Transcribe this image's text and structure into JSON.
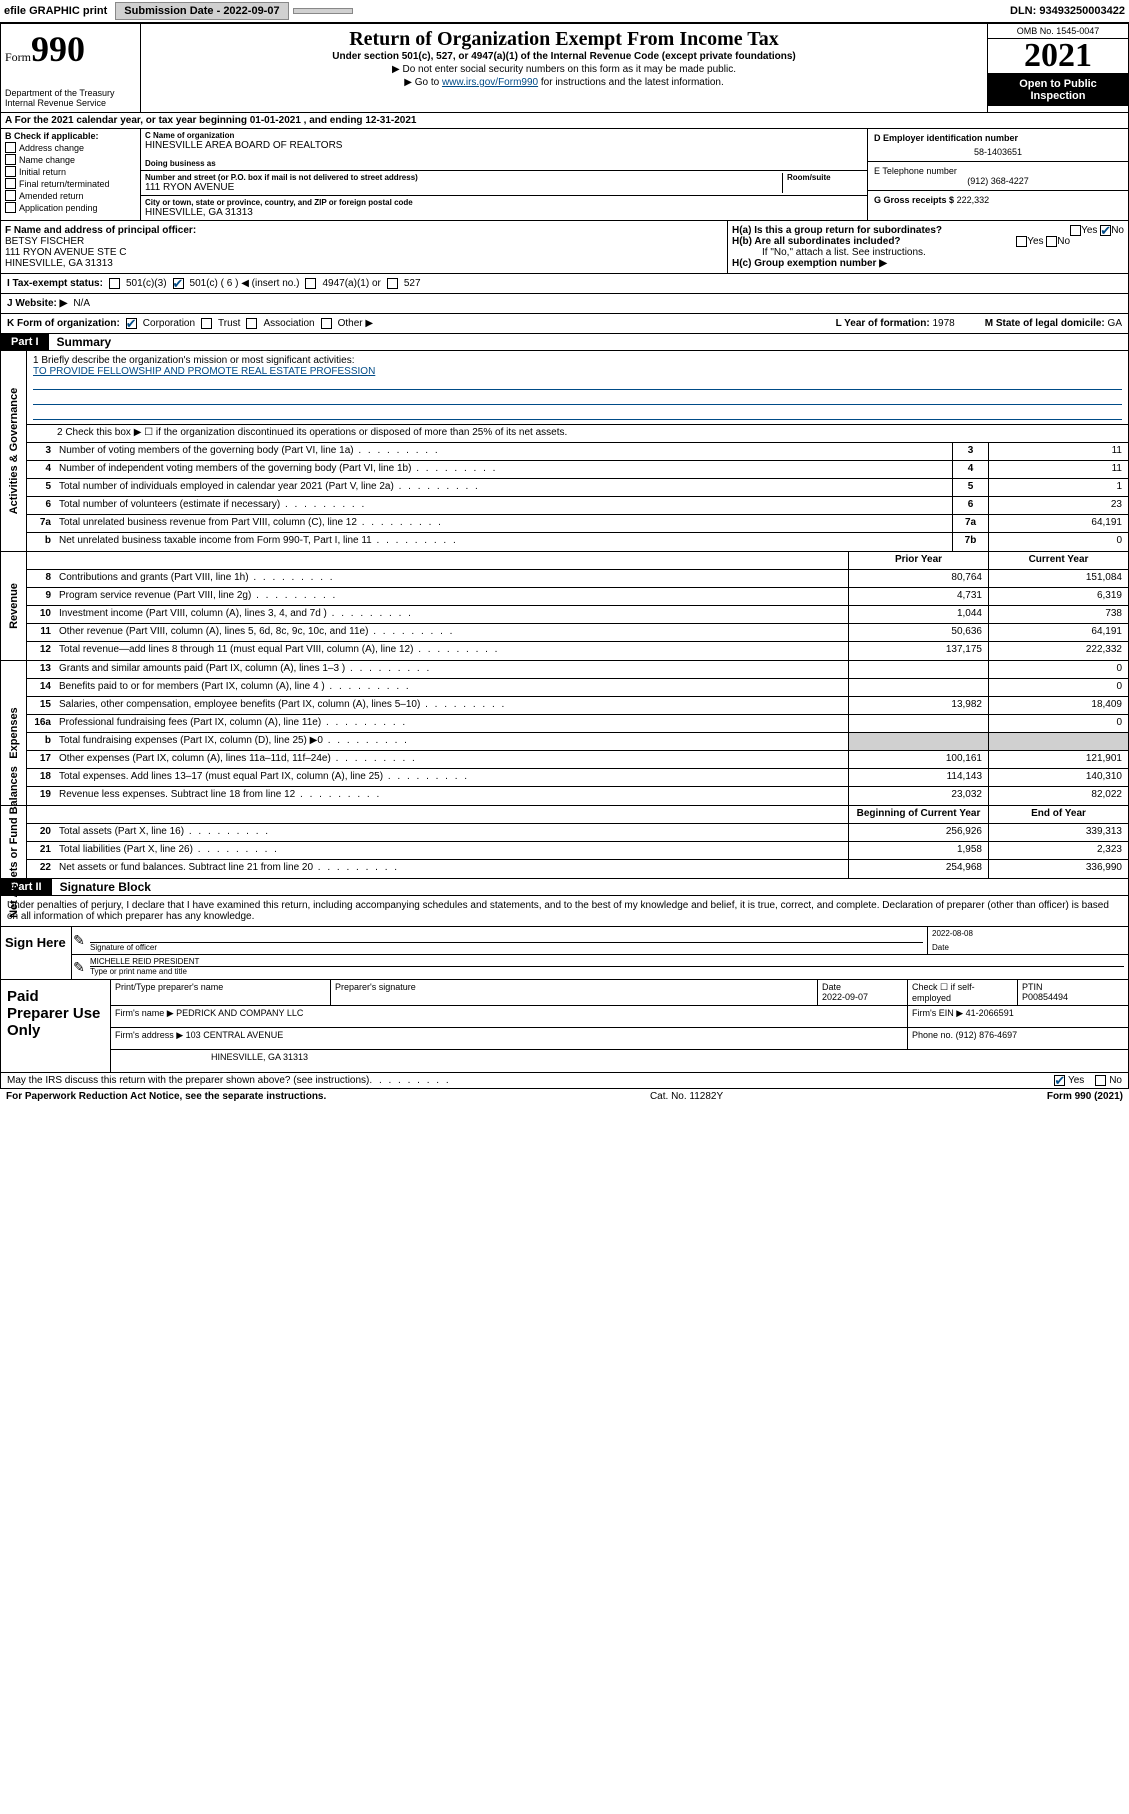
{
  "topbar": {
    "efile": "efile GRAPHIC print",
    "submission_btn": "Submission Date - 2022-09-07",
    "dln": "DLN: 93493250003422"
  },
  "header": {
    "form_word": "Form",
    "form_num": "990",
    "dept": "Department of the Treasury",
    "irs": "Internal Revenue Service",
    "title": "Return of Organization Exempt From Income Tax",
    "subtitle": "Under section 501(c), 527, or 4947(a)(1) of the Internal Revenue Code (except private foundations)",
    "note1": "▶ Do not enter social security numbers on this form as it may be made public.",
    "note2_pre": "▶ Go to ",
    "note2_link": "www.irs.gov/Form990",
    "note2_post": " for instructions and the latest information.",
    "omb": "OMB No. 1545-0047",
    "year": "2021",
    "open": "Open to Public Inspection"
  },
  "row_a": "A For the 2021 calendar year, or tax year beginning 01-01-2021   , and ending 12-31-2021",
  "col_b": {
    "title": "B Check if applicable:",
    "items": [
      "Address change",
      "Name change",
      "Initial return",
      "Final return/terminated",
      "Amended return",
      "Application pending"
    ]
  },
  "col_c": {
    "name_label": "C Name of organization",
    "name": "HINESVILLE AREA BOARD OF REALTORS",
    "dba_label": "Doing business as",
    "dba": "",
    "addr_label": "Number and street (or P.O. box if mail is not delivered to street address)",
    "room_label": "Room/suite",
    "addr": "111 RYON AVENUE",
    "city_label": "City or town, state or province, country, and ZIP or foreign postal code",
    "city": "HINESVILLE, GA  31313"
  },
  "col_de": {
    "ein_label": "D Employer identification number",
    "ein": "58-1403651",
    "phone_label": "E Telephone number",
    "phone": "(912) 368-4227",
    "gross_label": "G Gross receipts $",
    "gross": "222,332"
  },
  "row_f": {
    "label": "F Name and address of principal officer:",
    "name": "BETSY FISCHER",
    "addr1": "111 RYON AVENUE STE C",
    "addr2": "HINESVILLE, GA  31313"
  },
  "row_h": {
    "ha": "H(a)  Is this a group return for subordinates?",
    "hb": "H(b)  Are all subordinates included?",
    "hb_note": "If \"No,\" attach a list. See instructions.",
    "hc": "H(c)  Group exemption number ▶",
    "yes": "Yes",
    "no": "No"
  },
  "tax_status": {
    "label": "I   Tax-exempt status:",
    "opt1": "501(c)(3)",
    "opt2": "501(c) ( 6 ) ◀ (insert no.)",
    "opt3": "4947(a)(1) or",
    "opt4": "527"
  },
  "website": {
    "label": "J   Website: ▶",
    "val": "N/A"
  },
  "korg": {
    "label": "K Form of organization:",
    "opts": [
      "Corporation",
      "Trust",
      "Association",
      "Other ▶"
    ],
    "year_label": "L Year of formation:",
    "year": "1978",
    "state_label": "M State of legal domicile:",
    "state": "GA"
  },
  "part1": {
    "header": "Part I",
    "title": "Summary",
    "mission_label": "1   Briefly describe the organization's mission or most significant activities:",
    "mission": "TO PROVIDE FELLOWSHIP AND PROMOTE REAL ESTATE PROFESSION",
    "line2": "2   Check this box ▶ ☐  if the organization discontinued its operations or disposed of more than 25% of its net assets.",
    "sections": {
      "governance": "Activities & Governance",
      "revenue": "Revenue",
      "expenses": "Expenses",
      "netassets": "Net Assets or Fund Balances"
    },
    "gov_lines": [
      {
        "n": "3",
        "d": "Number of voting members of the governing body (Part VI, line 1a)",
        "box": "3",
        "v": "11"
      },
      {
        "n": "4",
        "d": "Number of independent voting members of the governing body (Part VI, line 1b)",
        "box": "4",
        "v": "11"
      },
      {
        "n": "5",
        "d": "Total number of individuals employed in calendar year 2021 (Part V, line 2a)",
        "box": "5",
        "v": "1"
      },
      {
        "n": "6",
        "d": "Total number of volunteers (estimate if necessary)",
        "box": "6",
        "v": "23"
      },
      {
        "n": "7a",
        "d": "Total unrelated business revenue from Part VIII, column (C), line 12",
        "box": "7a",
        "v": "64,191"
      },
      {
        "n": "b",
        "d": "Net unrelated business taxable income from Form 990-T, Part I, line 11",
        "box": "7b",
        "v": "0"
      }
    ],
    "prior_year": "Prior Year",
    "current_year": "Current Year",
    "rev_lines": [
      {
        "n": "8",
        "d": "Contributions and grants (Part VIII, line 1h)",
        "p": "80,764",
        "c": "151,084"
      },
      {
        "n": "9",
        "d": "Program service revenue (Part VIII, line 2g)",
        "p": "4,731",
        "c": "6,319"
      },
      {
        "n": "10",
        "d": "Investment income (Part VIII, column (A), lines 3, 4, and 7d )",
        "p": "1,044",
        "c": "738"
      },
      {
        "n": "11",
        "d": "Other revenue (Part VIII, column (A), lines 5, 6d, 8c, 9c, 10c, and 11e)",
        "p": "50,636",
        "c": "64,191"
      },
      {
        "n": "12",
        "d": "Total revenue—add lines 8 through 11 (must equal Part VIII, column (A), line 12)",
        "p": "137,175",
        "c": "222,332"
      }
    ],
    "exp_lines": [
      {
        "n": "13",
        "d": "Grants and similar amounts paid (Part IX, column (A), lines 1–3 )",
        "p": "",
        "c": "0"
      },
      {
        "n": "14",
        "d": "Benefits paid to or for members (Part IX, column (A), line 4 )",
        "p": "",
        "c": "0"
      },
      {
        "n": "15",
        "d": "Salaries, other compensation, employee benefits (Part IX, column (A), lines 5–10)",
        "p": "13,982",
        "c": "18,409"
      },
      {
        "n": "16a",
        "d": "Professional fundraising fees (Part IX, column (A), line 11e)",
        "p": "",
        "c": "0"
      },
      {
        "n": "b",
        "d": "Total fundraising expenses (Part IX, column (D), line 25) ▶0",
        "p": "SHADE",
        "c": "SHADE"
      },
      {
        "n": "17",
        "d": "Other expenses (Part IX, column (A), lines 11a–11d, 11f–24e)",
        "p": "100,161",
        "c": "121,901"
      },
      {
        "n": "18",
        "d": "Total expenses. Add lines 13–17 (must equal Part IX, column (A), line 25)",
        "p": "114,143",
        "c": "140,310"
      },
      {
        "n": "19",
        "d": "Revenue less expenses. Subtract line 18 from line 12",
        "p": "23,032",
        "c": "82,022"
      }
    ],
    "begin_year": "Beginning of Current Year",
    "end_year": "End of Year",
    "net_lines": [
      {
        "n": "20",
        "d": "Total assets (Part X, line 16)",
        "p": "256,926",
        "c": "339,313"
      },
      {
        "n": "21",
        "d": "Total liabilities (Part X, line 26)",
        "p": "1,958",
        "c": "2,323"
      },
      {
        "n": "22",
        "d": "Net assets or fund balances. Subtract line 21 from line 20",
        "p": "254,968",
        "c": "336,990"
      }
    ]
  },
  "part2": {
    "header": "Part II",
    "title": "Signature Block",
    "decl": "Under penalties of perjury, I declare that I have examined this return, including accompanying schedules and statements, and to the best of my knowledge and belief, it is true, correct, and complete. Declaration of preparer (other than officer) is based on all information of which preparer has any knowledge.",
    "sign_here": "Sign Here",
    "sig_officer": "Signature of officer",
    "date": "Date",
    "sig_date": "2022-08-08",
    "name_title": "MICHELLE REID PRESIDENT",
    "name_label": "Type or print name and title",
    "paid": "Paid Preparer Use Only",
    "prep_name_label": "Print/Type preparer's name",
    "prep_sig_label": "Preparer's signature",
    "prep_date_label": "Date",
    "prep_date": "2022-09-07",
    "check_if": "Check ☐ if self-employed",
    "ptin_label": "PTIN",
    "ptin": "P00854494",
    "firm_name_label": "Firm's name      ▶",
    "firm_name": "PEDRICK AND COMPANY LLC",
    "firm_ein_label": "Firm's EIN ▶",
    "firm_ein": "41-2066591",
    "firm_addr_label": "Firm's address ▶",
    "firm_addr1": "103 CENTRAL AVENUE",
    "firm_addr2": "HINESVILLE, GA  31313",
    "phone_label": "Phone no.",
    "phone": "(912) 876-4697",
    "may_irs": "May the IRS discuss this return with the preparer shown above? (see instructions)",
    "yes": "Yes",
    "no": "No"
  },
  "footer": {
    "paperwork": "For Paperwork Reduction Act Notice, see the separate instructions.",
    "cat": "Cat. No. 11282Y",
    "form": "Form 990 (2021)"
  }
}
